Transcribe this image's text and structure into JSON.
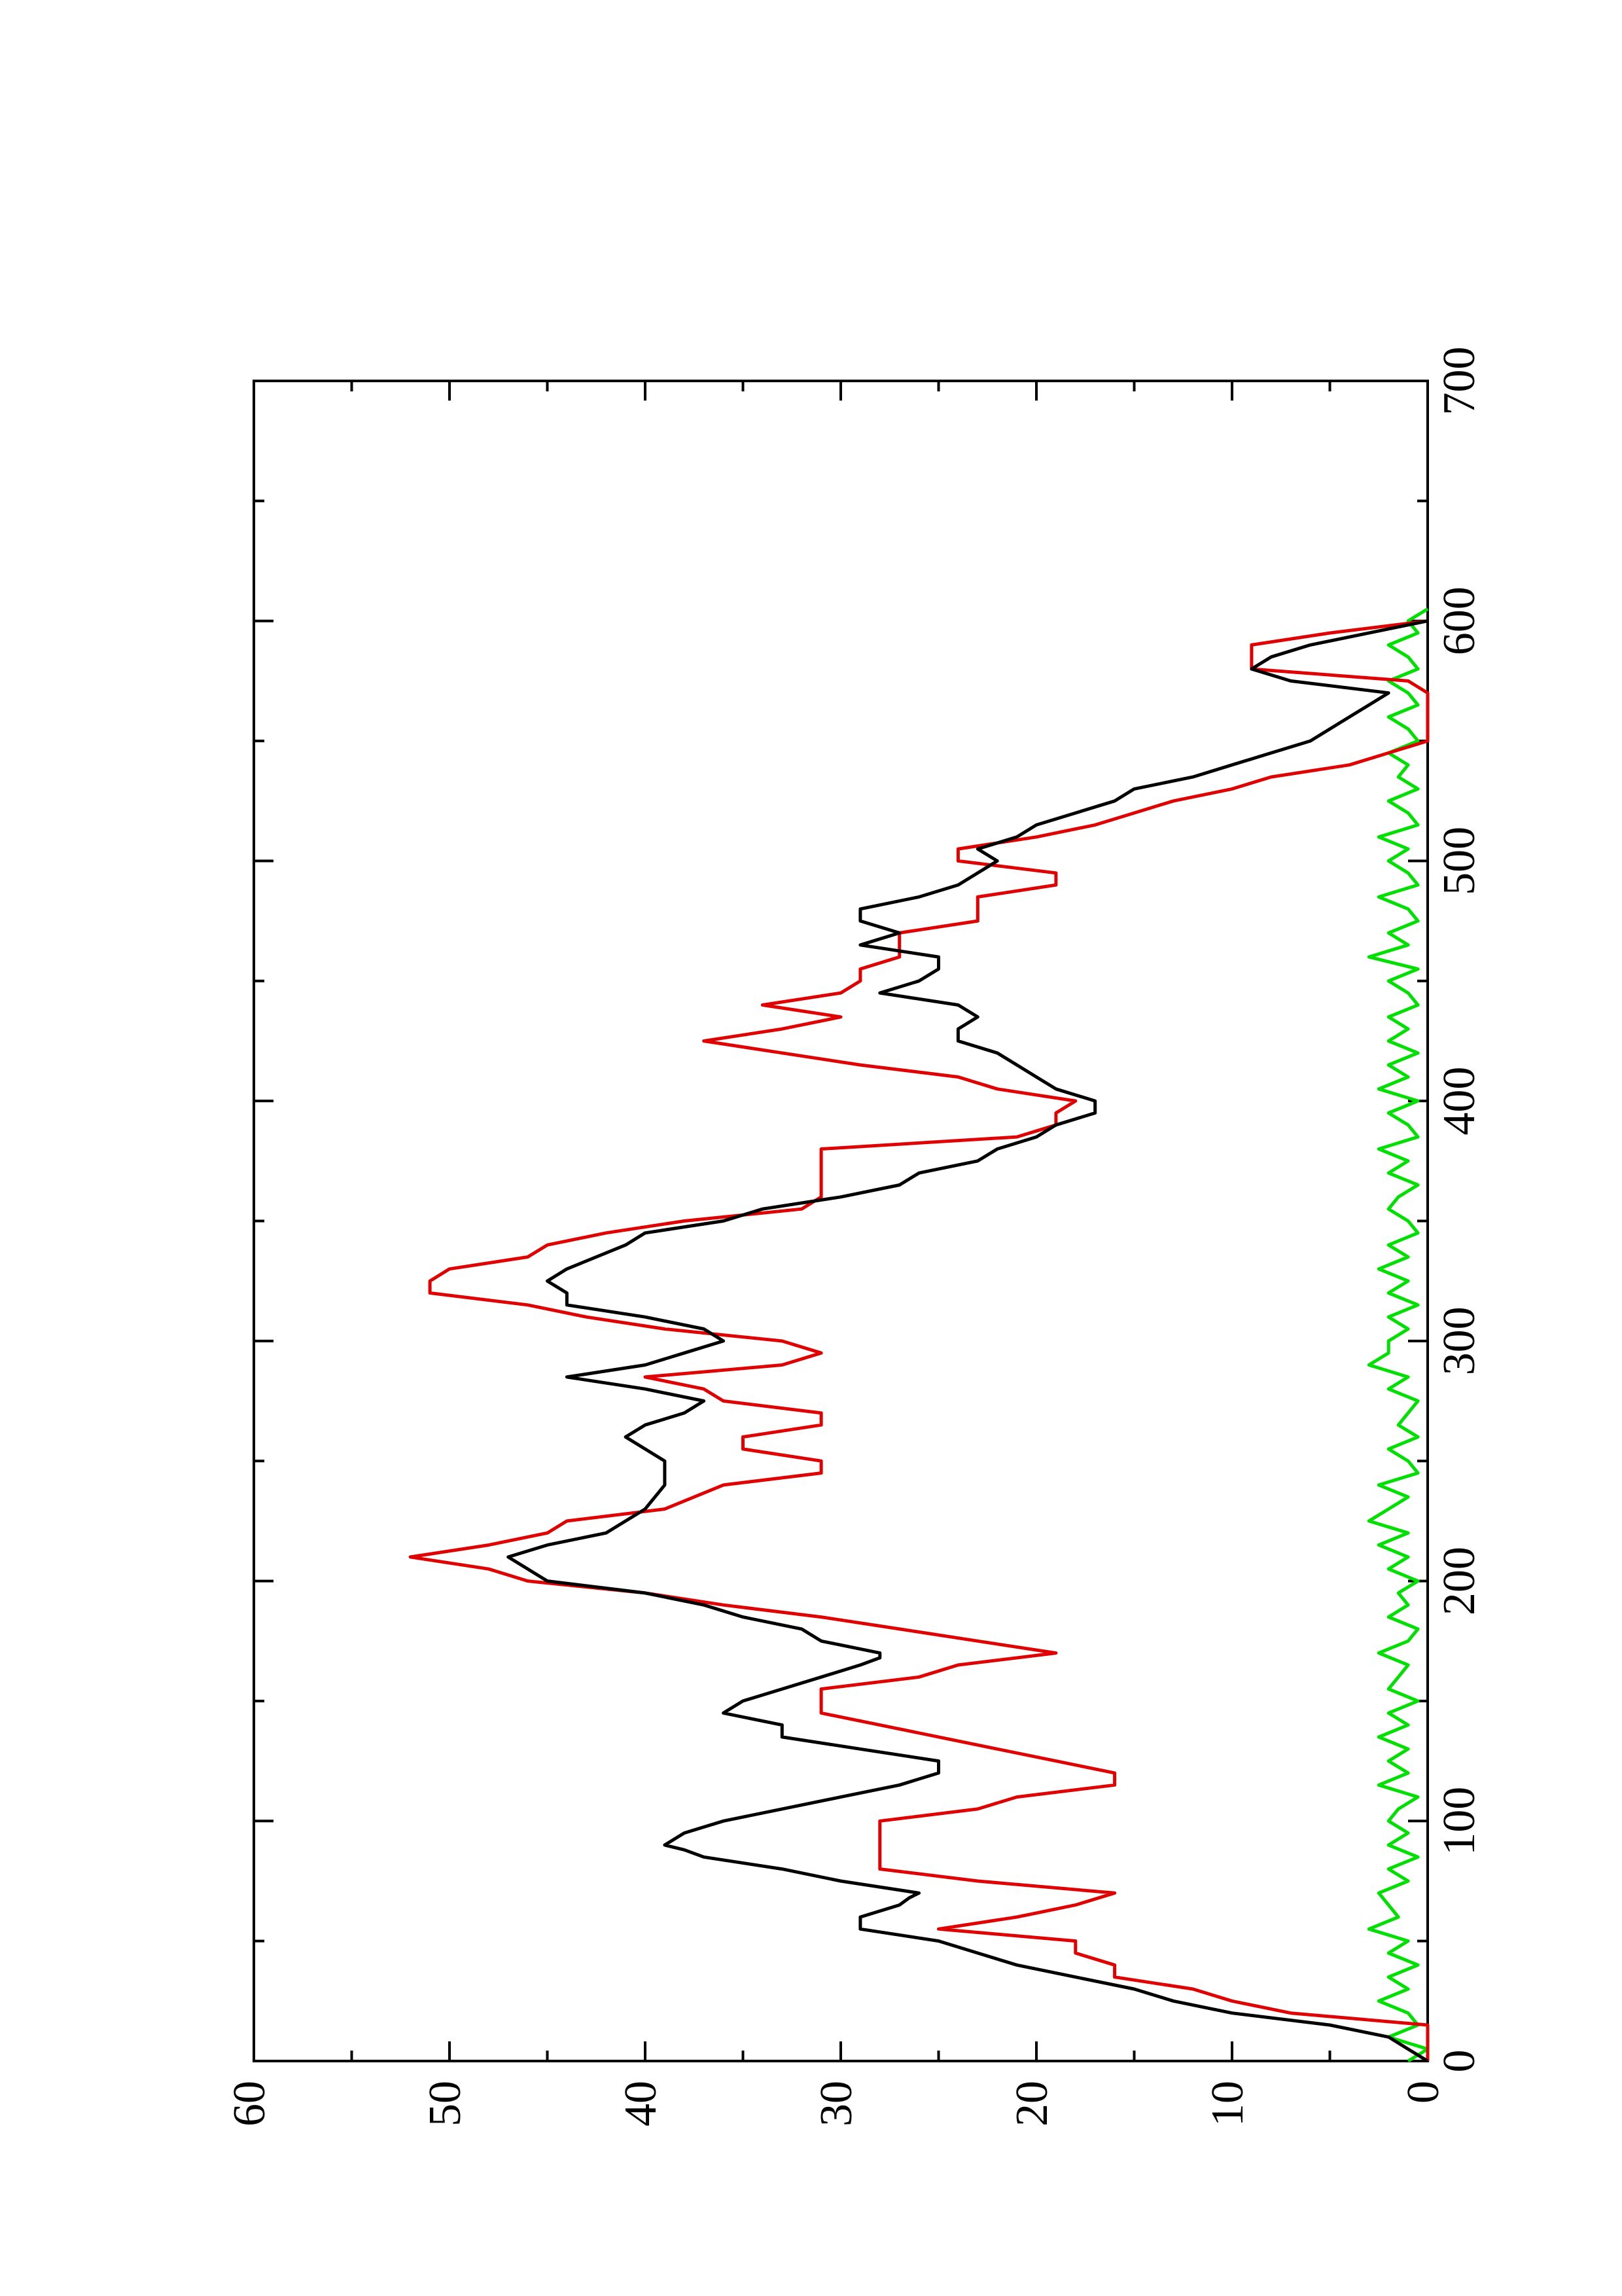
{
  "chart_data": {
    "type": "line",
    "xlim": [
      0,
      700
    ],
    "xticks": [
      0,
      100,
      200,
      300,
      400,
      500,
      600,
      700
    ],
    "ylim": [
      0,
      60
    ],
    "yticks": [
      0,
      10,
      20,
      30,
      40,
      50,
      60
    ],
    "series": [
      {
        "color": "#000000",
        "x": [
          0,
          5,
          10,
          15,
          20,
          25,
          30,
          35,
          40,
          45,
          50,
          55,
          60,
          65,
          68,
          70,
          75,
          80,
          85,
          88,
          90,
          95,
          100,
          105,
          110,
          115,
          120,
          125,
          130,
          135,
          140,
          145,
          150,
          155,
          160,
          165,
          168,
          170,
          175,
          180,
          185,
          190,
          195,
          200,
          205,
          210,
          215,
          220,
          225,
          230,
          240,
          250,
          255,
          260,
          265,
          270,
          275,
          280,
          285,
          290,
          295,
          300,
          305,
          310,
          315,
          320,
          325,
          330,
          340,
          345,
          350,
          355,
          360,
          365,
          370,
          375,
          380,
          385,
          390,
          395,
          400,
          405,
          410,
          415,
          420,
          425,
          430,
          435,
          440,
          445,
          450,
          455,
          460,
          465,
          470,
          475,
          480,
          485,
          490,
          495,
          500,
          505,
          510,
          515,
          520,
          525,
          530,
          535,
          540,
          545,
          550,
          555,
          560,
          565,
          570,
          575,
          580,
          585,
          590,
          595,
          600
        ],
        "values": [
          0,
          1,
          2,
          5,
          10,
          13,
          15,
          18,
          21,
          23,
          25,
          29,
          29,
          27,
          26.5,
          26,
          30,
          33,
          37,
          38,
          39,
          38,
          36,
          33,
          30,
          27,
          25,
          25,
          29,
          33,
          33,
          36,
          35,
          33,
          31,
          29,
          28,
          28,
          31,
          32,
          35,
          37,
          40,
          45,
          46,
          47,
          45,
          42,
          41,
          40,
          39,
          39,
          40,
          41,
          40,
          38,
          37,
          40,
          44,
          40,
          38,
          36,
          37,
          40,
          44,
          44,
          45,
          44,
          41,
          40,
          36,
          34,
          30,
          27,
          26,
          23,
          22,
          20,
          19,
          17,
          17,
          19,
          20,
          21,
          22,
          24,
          24,
          23,
          24,
          28,
          26,
          25,
          25,
          29,
          27,
          29,
          29,
          26,
          24,
          23,
          22,
          23,
          21,
          20,
          18,
          16,
          15,
          12,
          10,
          8,
          6,
          5,
          4,
          3,
          2,
          7,
          9,
          8,
          6,
          3,
          0
        ]
      },
      {
        "color": "#e00000",
        "x": [
          0,
          15,
          20,
          25,
          30,
          35,
          40,
          45,
          50,
          55,
          60,
          65,
          70,
          75,
          80,
          85,
          90,
          100,
          105,
          110,
          115,
          120,
          125,
          130,
          135,
          140,
          145,
          150,
          155,
          160,
          165,
          170,
          175,
          180,
          185,
          190,
          195,
          200,
          205,
          210,
          215,
          220,
          225,
          230,
          240,
          245,
          250,
          255,
          260,
          265,
          270,
          275,
          280,
          285,
          290,
          295,
          300,
          305,
          310,
          315,
          320,
          325,
          330,
          335,
          340,
          345,
          350,
          355,
          360,
          370,
          380,
          385,
          390,
          395,
          400,
          405,
          410,
          415,
          420,
          425,
          430,
          435,
          440,
          445,
          450,
          455,
          460,
          465,
          470,
          475,
          480,
          485,
          490,
          495,
          500,
          505,
          510,
          515,
          520,
          525,
          530,
          535,
          540,
          545,
          550,
          560,
          570,
          575,
          580,
          585,
          590,
          595,
          600
        ],
        "values": [
          0,
          0,
          7,
          10,
          12,
          16,
          16,
          18,
          18,
          25,
          21,
          18,
          16,
          23,
          28,
          28,
          28,
          28,
          23,
          21,
          16,
          16,
          19,
          22,
          25,
          28,
          31,
          31,
          31,
          26,
          24,
          19,
          23,
          27,
          31,
          36,
          40,
          46,
          48,
          52,
          48,
          45,
          44,
          39,
          36,
          31,
          31,
          35,
          35,
          31,
          31,
          36,
          37,
          40,
          33,
          31,
          33,
          39,
          43,
          46,
          51,
          51,
          50,
          46,
          45,
          42,
          38,
          32,
          31,
          31,
          31,
          21,
          19,
          19,
          18,
          22,
          24,
          29,
          33,
          37,
          33,
          30,
          34,
          30,
          29,
          29,
          27,
          27,
          27,
          23,
          23,
          23,
          19,
          19,
          24,
          24,
          20,
          17,
          15,
          13,
          10,
          8,
          4,
          2,
          0,
          0,
          0,
          1,
          9,
          9,
          9,
          5,
          0
        ]
      },
      {
        "color": "#00e000",
        "x": [
          0,
          5,
          10,
          15,
          20,
          25,
          30,
          35,
          40,
          45,
          50,
          55,
          60,
          65,
          70,
          75,
          80,
          85,
          90,
          95,
          100,
          105,
          110,
          115,
          120,
          125,
          130,
          135,
          140,
          145,
          150,
          155,
          160,
          165,
          170,
          175,
          180,
          185,
          190,
          195,
          200,
          205,
          210,
          215,
          220,
          225,
          230,
          235,
          240,
          245,
          250,
          255,
          260,
          265,
          270,
          275,
          280,
          285,
          290,
          295,
          300,
          305,
          310,
          315,
          320,
          325,
          330,
          335,
          340,
          345,
          350,
          355,
          360,
          365,
          370,
          375,
          380,
          385,
          390,
          395,
          400,
          405,
          410,
          415,
          420,
          425,
          430,
          435,
          440,
          445,
          450,
          455,
          460,
          465,
          470,
          475,
          480,
          485,
          490,
          495,
          500,
          505,
          510,
          515,
          520,
          525,
          530,
          535,
          540,
          545,
          550,
          555,
          560,
          565,
          570,
          575,
          580,
          585,
          590,
          595,
          600,
          605
        ],
        "values": [
          1,
          0,
          2,
          0.5,
          1,
          2.5,
          1,
          2,
          0.5,
          2,
          1,
          3,
          1.5,
          2,
          2.5,
          1,
          2,
          0.5,
          2,
          1,
          2,
          1.5,
          0.5,
          2.5,
          1,
          2,
          1,
          2.5,
          1,
          2,
          0.5,
          2,
          1.5,
          1,
          2.5,
          1,
          0.5,
          2,
          1,
          1.5,
          0.5,
          2,
          1,
          2.5,
          1,
          3,
          2,
          1,
          2.5,
          0.5,
          1,
          2,
          0.5,
          1.5,
          1,
          0.5,
          2,
          1,
          3,
          2,
          2,
          1,
          2,
          0.5,
          2,
          1,
          2.5,
          1,
          2,
          0.5,
          1,
          2,
          1.5,
          0.5,
          2,
          1,
          2.5,
          0.5,
          1,
          2,
          0.5,
          2.5,
          1,
          2,
          0.5,
          2,
          1,
          2,
          0.5,
          1,
          2,
          0.5,
          3,
          1,
          2,
          0.5,
          1,
          2.5,
          0.5,
          1,
          2,
          1,
          2.5,
          0.5,
          1,
          2,
          0.5,
          1.5,
          1,
          2,
          0.5,
          1,
          2,
          0.5,
          1,
          2,
          0.5,
          1,
          2,
          0.5,
          1,
          0
        ]
      }
    ]
  }
}
